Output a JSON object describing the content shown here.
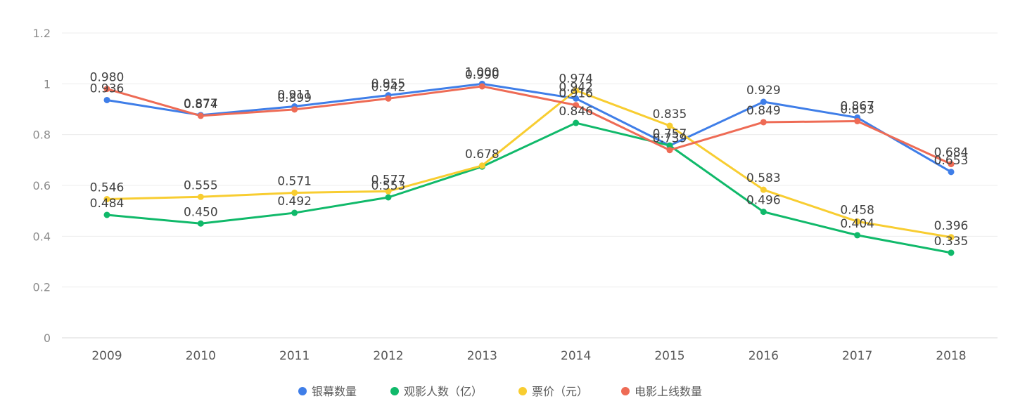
{
  "chart_data": {
    "type": "line",
    "title": "",
    "xlabel": "",
    "ylabel": "",
    "ylim": [
      0,
      1.2
    ],
    "yticks": [
      "0",
      "0.2",
      "0.4",
      "0.6",
      "0.8",
      "1",
      "1.2"
    ],
    "categories": [
      "2009",
      "2010",
      "2011",
      "2012",
      "2013",
      "2014",
      "2015",
      "2016",
      "2017",
      "2018"
    ],
    "legend_position": "bottom",
    "grid": true,
    "series": [
      {
        "name": "银幕数量",
        "color": "#3f7ee8",
        "values": [
          0.936,
          0.877,
          0.911,
          0.955,
          1.0,
          0.942,
          0.757,
          0.929,
          0.867,
          0.653
        ],
        "labels": [
          "0.936",
          "0.877",
          "0.911",
          "0.955",
          "1.000",
          "0.942",
          "0.757",
          "0.929",
          "0.867",
          "0.653"
        ]
      },
      {
        "name": "观影人数（亿）",
        "color": "#10b96a",
        "values": [
          0.484,
          0.45,
          0.492,
          0.553,
          0.674,
          0.846,
          0.757,
          0.496,
          0.404,
          0.335
        ],
        "labels": [
          "0.484",
          "0.450",
          "0.492",
          "0.553",
          "",
          "0.846",
          "",
          "0.496",
          "0.404",
          "0.335"
        ]
      },
      {
        "name": "票价（元）",
        "color": "#f8cd31",
        "values": [
          0.546,
          0.555,
          0.571,
          0.577,
          0.678,
          0.974,
          0.835,
          0.583,
          0.458,
          0.396
        ],
        "labels": [
          "0.546",
          "0.555",
          "0.571",
          "0.577",
          "0.678",
          "0.974",
          "0.835",
          "0.583",
          "0.458",
          "0.396"
        ]
      },
      {
        "name": "电影上线数量",
        "color": "#ee6b55",
        "values": [
          0.98,
          0.874,
          0.899,
          0.942,
          0.99,
          0.916,
          0.739,
          0.849,
          0.853,
          0.684
        ],
        "labels": [
          "0.980",
          "0.874",
          "0.899",
          "0.942",
          "0.990",
          "0.916",
          "0.739",
          "0.849",
          "0.853",
          "0.684"
        ]
      }
    ]
  }
}
